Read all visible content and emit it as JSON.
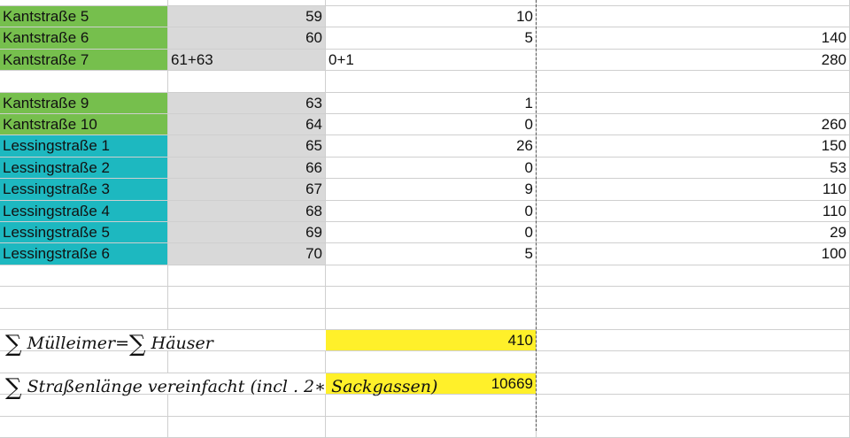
{
  "colors": {
    "kantstrasse": "#76bf4d",
    "lessingstrasse": "#1db8c0",
    "house_numbers": "#d9d9d9",
    "highlight": "#fff02a"
  },
  "rows": [
    {
      "street": "Kantstraße 5",
      "group": "kantstrasse",
      "num": "59",
      "bins": "10",
      "length": ""
    },
    {
      "street": "Kantstraße 6",
      "group": "kantstrasse",
      "num": "60",
      "bins": "5",
      "length": "140"
    },
    {
      "street": "Kantstraße 7",
      "group": "kantstrasse",
      "num": "61+63",
      "num_left": true,
      "bins": "0+1",
      "bins_left": true,
      "length": "280"
    },
    {
      "street": "",
      "group": "",
      "num": "",
      "bins": "",
      "length": ""
    },
    {
      "street": "Kantstraße 9",
      "group": "kantstrasse",
      "num": "63",
      "bins": "1",
      "length": ""
    },
    {
      "street": "Kantstraße 10",
      "group": "kantstrasse",
      "num": "64",
      "bins": "0",
      "length": "260"
    },
    {
      "street": "Lessingstraße 1",
      "group": "lessingstrasse",
      "num": "65",
      "bins": "26",
      "length": "150"
    },
    {
      "street": "Lessingstraße 2",
      "group": "lessingstrasse",
      "num": "66",
      "bins": "0",
      "length": "53"
    },
    {
      "street": "Lessingstraße 3",
      "group": "lessingstrasse",
      "num": "67",
      "bins": "9",
      "length": "110"
    },
    {
      "street": "Lessingstraße 4",
      "group": "lessingstrasse",
      "num": "68",
      "bins": "0",
      "length": "110"
    },
    {
      "street": "Lessingstraße 5",
      "group": "lessingstrasse",
      "num": "69",
      "bins": "0",
      "length": "29"
    },
    {
      "street": "Lessingstraße 6",
      "group": "lessingstrasse",
      "num": "70",
      "bins": "5",
      "length": "100"
    }
  ],
  "summary": {
    "bins_formula": {
      "sigma": "∑",
      "left": "Mülleimer",
      "equals": "=",
      "right": "Häuser",
      "value": "410"
    },
    "length_formula": {
      "sigma": "∑",
      "text": "Straßenlänge vereinfacht (incl . 2∗ Sackgassen)",
      "value": "10669"
    }
  }
}
